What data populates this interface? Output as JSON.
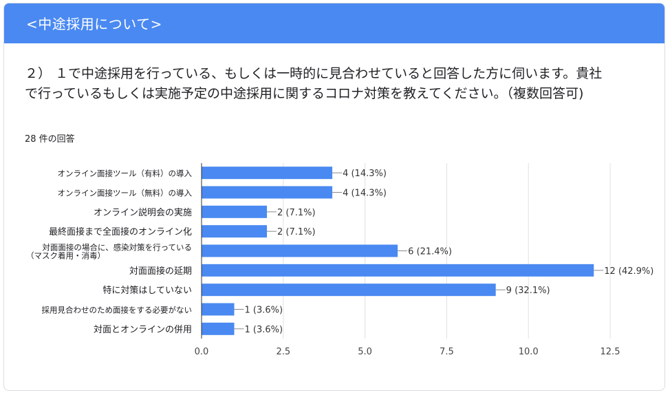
{
  "section": {
    "title": "<中途採用について>"
  },
  "question": {
    "text": "２） １で中途採用を行っている、もしくは一時的に見合わせていると回答した方に伺います。貴社で行っているもしくは実施予定の中途採用に関するコロナ対策を教えてください。（複数回答可)"
  },
  "response_count": "28 件の回答",
  "colors": {
    "header": "#4a89f1",
    "bar": "#4a89f1",
    "grid": "#e0e0e0",
    "axis": "#333333"
  },
  "chart_data": {
    "type": "bar",
    "orientation": "horizontal",
    "categories": [
      [
        "オンライン面接ツール（有料）の導入"
      ],
      [
        "オンライン面接ツール（無料）の導入"
      ],
      [
        "オンライン説明会の実施"
      ],
      [
        "最終面接まで全面接のオンライン化"
      ],
      [
        "対面面接の場合に、感染対策を行っている",
        "（マスク着用・消毒）"
      ],
      [
        "対面面接の延期"
      ],
      [
        "特に対策はしていない"
      ],
      [
        "採用見合わせのため面接をする必要がない"
      ],
      [
        "対面とオンラインの併用"
      ]
    ],
    "values": [
      4,
      4,
      2,
      2,
      6,
      12,
      9,
      1,
      1
    ],
    "data_labels": [
      "4 (14.3%)",
      "4 (14.3%)",
      "2 (7.1%)",
      "2 (7.1%)",
      "6 (21.4%)",
      "12 (42.9%)",
      "9 (32.1%)",
      "1 (3.6%)",
      "1 (3.6%)"
    ],
    "xlim": [
      0,
      12.5
    ],
    "xticks": [
      "0.0",
      "2.5",
      "5.0",
      "7.5",
      "10.0",
      "12.5"
    ],
    "xtick_values": [
      0,
      2.5,
      5,
      7.5,
      10,
      12.5
    ],
    "grid": true
  }
}
